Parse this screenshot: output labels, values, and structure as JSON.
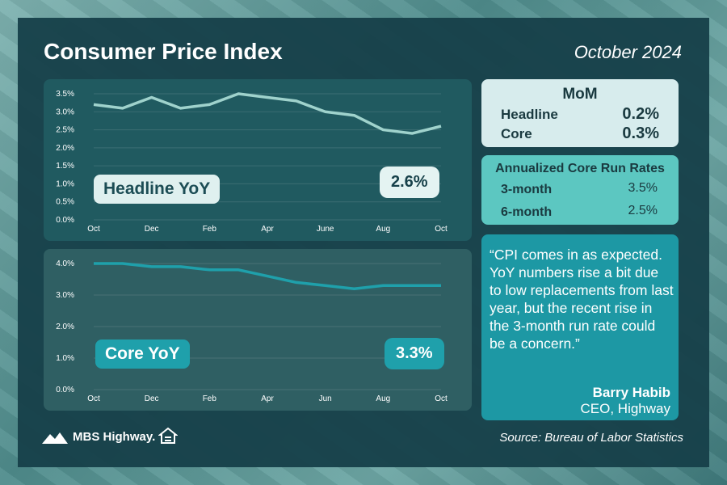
{
  "header": {
    "title": "Consumer Price Index",
    "date": "October 2024"
  },
  "chart_data": [
    {
      "type": "line",
      "title": "Headline YoY",
      "series": [
        {
          "values": [
            3.2,
            3.1,
            3.4,
            3.1,
            3.2,
            3.5,
            3.4,
            3.3,
            3.0,
            2.9,
            2.5,
            2.4,
            2.6
          ]
        }
      ],
      "x_tick_labels": [
        "Oct",
        "Dec",
        "Feb",
        "Apr",
        "June",
        "Aug",
        "Oct"
      ],
      "y_tick_labels": [
        "0.0%",
        "0.5%",
        "1.0%",
        "1.5%",
        "2.0%",
        "2.5%",
        "3.0%",
        "3.5%"
      ],
      "ylim": [
        0,
        3.5
      ],
      "callout": "2.6%",
      "line_color": "#9fd2cc"
    },
    {
      "type": "line",
      "title": "Core YoY",
      "series": [
        {
          "values": [
            4.0,
            4.0,
            3.9,
            3.9,
            3.8,
            3.8,
            3.6,
            3.4,
            3.3,
            3.2,
            3.3,
            3.3,
            3.3
          ]
        }
      ],
      "x_tick_labels": [
        "Oct",
        "Dec",
        "Feb",
        "Apr",
        "Jun",
        "Aug",
        "Oct"
      ],
      "y_tick_labels": [
        "0.0%",
        "1.0%",
        "2.0%",
        "3.0%",
        "4.0%"
      ],
      "ylim": [
        0,
        4
      ],
      "callout": "3.3%",
      "line_color": "#1fa0ab"
    }
  ],
  "mom": {
    "title": "MoM",
    "rows": [
      {
        "label": "Headline",
        "value": "0.2%"
      },
      {
        "label": "Core",
        "value": "0.3%"
      }
    ]
  },
  "run_rates": {
    "title": "Annualized Core Run Rates",
    "rows": [
      {
        "label": "3-month",
        "value": "3.5%"
      },
      {
        "label": "6-month",
        "value": "2.5%"
      }
    ]
  },
  "quote": {
    "text": "“CPI comes in as expected. YoY numbers rise a bit due to low replacements from last year, but the recent rise in the 3-month run rate could be a concern.”",
    "author": "Barry Habib",
    "role": "CEO, Highway"
  },
  "footer": {
    "logo": "MBS Highway.",
    "source": "Source: Bureau of Labor Statistics"
  }
}
